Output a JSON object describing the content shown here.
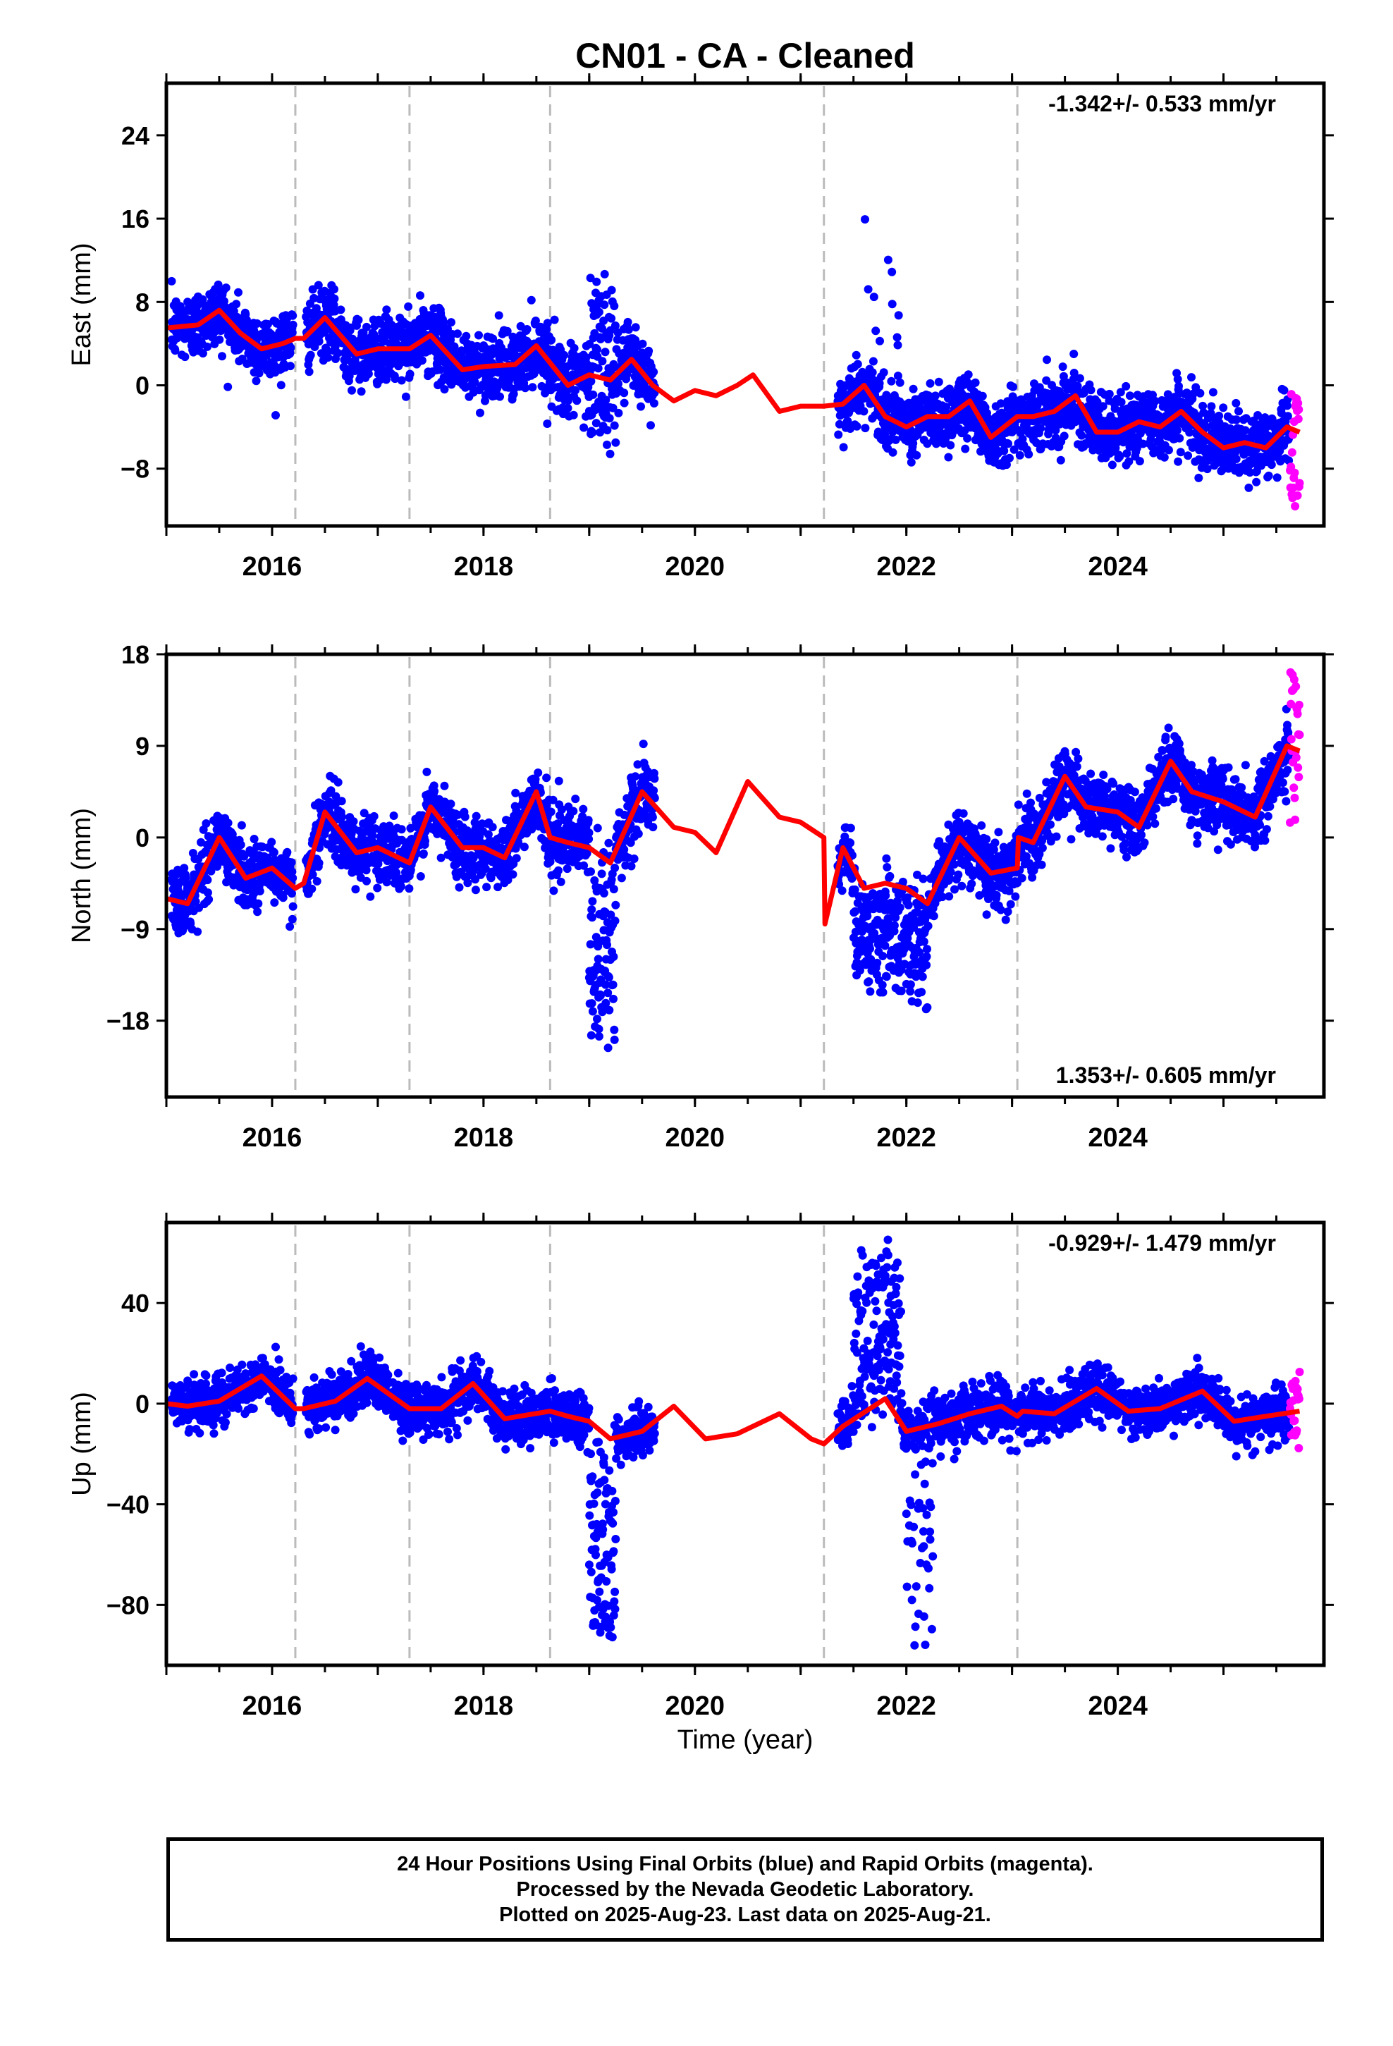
{
  "chart_data": {
    "type": "scatter",
    "title": "CN01  - CA - Cleaned",
    "xlabel": "Time (year)",
    "xlim": [
      2015.0,
      2025.95
    ],
    "xticks": [
      2016,
      2018,
      2020,
      2022,
      2024
    ],
    "x_minor_step": 0.5,
    "offset_epochs": [
      2016.22,
      2017.3,
      2018.63,
      2021.22,
      2023.05
    ],
    "marker_colors": {
      "final": "#0000ff",
      "rapid": "#ff00ff",
      "model": "#ff0000",
      "offset_line": "#bbbbbb"
    },
    "panels": [
      {
        "id": "east",
        "ylabel": "East (mm)",
        "ylim": [
          -13.5,
          29
        ],
        "yticks": [
          24,
          16,
          8,
          0,
          -8
        ],
        "yticklabels": [
          "24",
          "16",
          "8",
          "0",
          "−8"
        ],
        "rate_text": "-1.342+/- 0.533 mm/yr",
        "rate_position": "top-right",
        "model": {
          "x": [
            2015.0,
            2015.3,
            2015.5,
            2015.7,
            2015.9,
            2016.1,
            2016.22,
            2016.3,
            2016.5,
            2016.8,
            2017.0,
            2017.3,
            2017.5,
            2017.8,
            2018.0,
            2018.3,
            2018.5,
            2018.8,
            2019.0,
            2019.2,
            2019.4,
            2019.6,
            2019.8,
            2020.0,
            2020.2,
            2020.4,
            2020.55,
            2020.8,
            2021.0,
            2021.22,
            2021.4,
            2021.6,
            2021.8,
            2022.0,
            2022.2,
            2022.4,
            2022.6,
            2022.8,
            2023.05,
            2023.2,
            2023.4,
            2023.6,
            2023.8,
            2024.0,
            2024.2,
            2024.4,
            2024.6,
            2024.8,
            2025.0,
            2025.2,
            2025.4,
            2025.6,
            2025.72
          ],
          "y": [
            5.5,
            5.8,
            7.2,
            5.0,
            3.5,
            4.0,
            4.5,
            4.5,
            6.5,
            3.0,
            3.5,
            3.5,
            4.8,
            1.5,
            1.8,
            2.0,
            3.8,
            0.0,
            1.0,
            0.5,
            2.5,
            0.0,
            -1.5,
            -0.5,
            -1.0,
            0.0,
            1.0,
            -2.5,
            -2.0,
            -2.0,
            -1.8,
            0.0,
            -3.0,
            -4.0,
            -3.0,
            -3.0,
            -1.5,
            -5.0,
            -3.0,
            -3.0,
            -2.5,
            -1.0,
            -4.5,
            -4.5,
            -3.5,
            -4.0,
            -2.5,
            -4.5,
            -6.0,
            -5.5,
            -6.0,
            -4.0,
            -4.5
          ]
        }
      },
      {
        "id": "north",
        "ylabel": "North (mm)",
        "ylim": [
          -25.5,
          18
        ],
        "yticks": [
          18,
          9,
          0,
          -9,
          -18
        ],
        "yticklabels": [
          "18",
          "9",
          "0",
          "−9",
          "−18"
        ],
        "rate_text": "1.353+/- 0.605 mm/yr",
        "rate_position": "bottom-right",
        "model": {
          "x": [
            2015.0,
            2015.2,
            2015.5,
            2015.75,
            2016.0,
            2016.22,
            2016.3,
            2016.5,
            2016.8,
            2017.0,
            2017.3,
            2017.5,
            2017.8,
            2018.0,
            2018.2,
            2018.5,
            2018.63,
            2018.8,
            2019.0,
            2019.2,
            2019.5,
            2019.8,
            2020.0,
            2020.2,
            2020.5,
            2020.8,
            2021.0,
            2021.22,
            2021.23,
            2021.4,
            2021.6,
            2021.8,
            2022.0,
            2022.2,
            2022.5,
            2022.8,
            2023.05,
            2023.06,
            2023.2,
            2023.5,
            2023.7,
            2024.0,
            2024.2,
            2024.5,
            2024.7,
            2025.0,
            2025.3,
            2025.6,
            2025.72
          ],
          "y": [
            -6.0,
            -6.5,
            0.0,
            -4.0,
            -3.0,
            -5.0,
            -4.5,
            2.5,
            -1.5,
            -1.0,
            -2.5,
            3.0,
            -1.0,
            -1.0,
            -2.0,
            4.5,
            0.0,
            -0.5,
            -1.0,
            -2.5,
            4.5,
            1.0,
            0.5,
            -1.5,
            5.5,
            2.0,
            1.5,
            0.0,
            -8.5,
            -1.0,
            -5.0,
            -4.5,
            -5.0,
            -6.5,
            0.0,
            -3.5,
            -3.0,
            0.0,
            -0.5,
            6.0,
            3.0,
            2.5,
            1.0,
            7.5,
            4.5,
            3.5,
            2.0,
            9.0,
            8.5
          ]
        }
      },
      {
        "id": "up",
        "ylabel": "Up (mm)",
        "ylim": [
          -104,
          72
        ],
        "yticks": [
          40,
          0,
          -40,
          -80
        ],
        "yticklabels": [
          "40",
          "0",
          "−40",
          "−80"
        ],
        "rate_text": "-0.929+/- 1.479 mm/yr",
        "rate_position": "top-right",
        "model": {
          "x": [
            2015.0,
            2015.2,
            2015.5,
            2015.9,
            2016.22,
            2016.3,
            2016.6,
            2016.9,
            2017.3,
            2017.6,
            2017.9,
            2018.2,
            2018.63,
            2018.8,
            2019.0,
            2019.2,
            2019.5,
            2019.8,
            2020.1,
            2020.4,
            2020.8,
            2021.1,
            2021.22,
            2021.4,
            2021.8,
            2022.0,
            2022.3,
            2022.6,
            2022.9,
            2023.05,
            2023.1,
            2023.4,
            2023.8,
            2024.1,
            2024.4,
            2024.8,
            2025.1,
            2025.4,
            2025.72
          ],
          "y": [
            0,
            -1,
            1,
            11,
            -2,
            -2,
            1,
            10,
            -2,
            -2,
            8,
            -6,
            -3,
            -5,
            -7,
            -14,
            -11,
            -1,
            -14,
            -12,
            -4,
            -14,
            -16,
            -9,
            2,
            -11,
            -8,
            -4,
            -1,
            -5,
            -3,
            -4,
            6,
            -3,
            -2,
            5,
            -7,
            -5,
            -3
          ]
        }
      }
    ],
    "series": [
      {
        "type": "scatter",
        "color": "#0000ff",
        "x": [
          2015.0,
          2025.62
        ],
        "y_by_panel": {
          "east": [
            5.5,
            -4.5
          ],
          "north": [
            -6.0,
            8.5
          ],
          "up": [
            0,
            -3
          ]
        }
      },
      {
        "type": "scatter",
        "color": "#ff00ff",
        "x": [
          2025.63,
          2025.72
        ],
        "y_by_panel": {
          "east": [
            -1.0,
            -12.5
          ],
          "north": [
            1.0,
            17.0
          ],
          "up": [
            -19,
            12
          ]
        }
      },
      {
        "type": "line",
        "color": "#ff0000",
        "ref": "panels[].model"
      }
    ]
  },
  "footer": {
    "line1": "24 Hour Positions Using Final Orbits (blue) and Rapid Orbits (magenta).",
    "line2": "Processed by the Nevada Geodetic Laboratory.",
    "line3": "Plotted on 2025-Aug-23. Last data on 2025-Aug-21."
  }
}
